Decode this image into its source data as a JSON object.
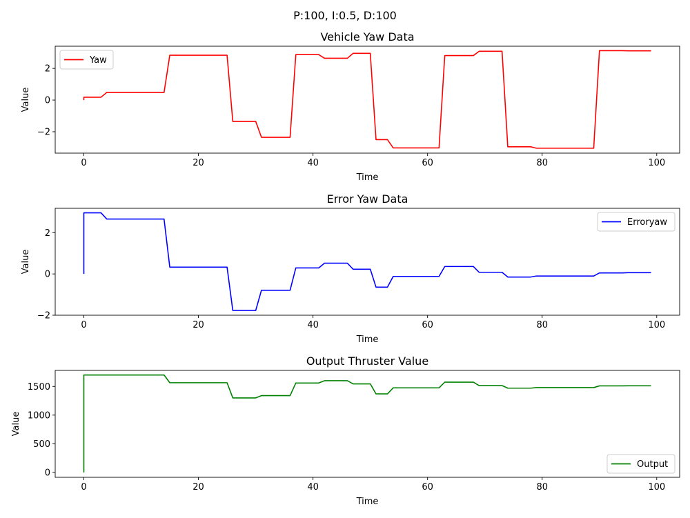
{
  "figure": {
    "suptitle": "P:100, I:0.5, D:100"
  },
  "chart_data": [
    {
      "type": "line",
      "title": "Vehicle Yaw Data",
      "xlabel": "Time",
      "ylabel": "Value",
      "xlim": [
        -5,
        104
      ],
      "ylim": [
        -3.35,
        3.4
      ],
      "xticks": [
        0,
        20,
        40,
        60,
        80,
        100
      ],
      "yticks": [
        -2,
        0,
        2
      ],
      "xtick_labels": [
        "0",
        "20",
        "40",
        "60",
        "80",
        "100"
      ],
      "ytick_labels": [
        "−2",
        "0",
        "2"
      ],
      "legend": {
        "position": "upper-left"
      },
      "series": [
        {
          "name": "Yaw",
          "color": "#ff0000",
          "x": [
            0,
            0,
            1,
            2,
            3,
            4,
            5,
            6,
            7,
            8,
            9,
            10,
            11,
            12,
            13,
            14,
            15,
            16,
            17,
            18,
            19,
            20,
            21,
            22,
            23,
            24,
            25,
            26,
            27,
            28,
            29,
            30,
            31,
            32,
            33,
            34,
            35,
            36,
            37,
            38,
            39,
            40,
            41,
            42,
            43,
            44,
            45,
            46,
            47,
            48,
            49,
            50,
            51,
            52,
            53,
            54,
            55,
            56,
            57,
            58,
            59,
            60,
            61,
            62,
            63,
            64,
            65,
            66,
            67,
            68,
            69,
            70,
            71,
            72,
            73,
            74,
            75,
            76,
            77,
            78,
            79,
            80,
            81,
            82,
            83,
            84,
            85,
            86,
            87,
            88,
            89,
            90,
            91,
            92,
            93,
            94,
            95,
            96,
            97,
            98,
            99
          ],
          "y": [
            0.0,
            0.18,
            0.18,
            0.18,
            0.18,
            0.48,
            0.48,
            0.48,
            0.48,
            0.48,
            0.48,
            0.48,
            0.48,
            0.48,
            0.48,
            0.48,
            2.83,
            2.83,
            2.83,
            2.83,
            2.83,
            2.83,
            2.83,
            2.83,
            2.83,
            2.83,
            2.83,
            -1.35,
            -1.35,
            -1.35,
            -1.35,
            -1.35,
            -2.35,
            -2.35,
            -2.35,
            -2.35,
            -2.35,
            -2.35,
            2.87,
            2.87,
            2.87,
            2.87,
            2.87,
            2.64,
            2.64,
            2.64,
            2.64,
            2.64,
            2.95,
            2.95,
            2.95,
            2.95,
            -2.5,
            -2.5,
            -2.5,
            -3.02,
            -3.02,
            -3.02,
            -3.02,
            -3.02,
            -3.02,
            -3.02,
            -3.02,
            -3.02,
            2.81,
            2.81,
            2.81,
            2.81,
            2.81,
            2.81,
            3.08,
            3.08,
            3.08,
            3.08,
            3.08,
            -2.95,
            -2.95,
            -2.95,
            -2.95,
            -2.95,
            -3.04,
            -3.04,
            -3.04,
            -3.04,
            -3.04,
            -3.04,
            -3.04,
            -3.04,
            -3.04,
            -3.04,
            -3.04,
            3.12,
            3.12,
            3.12,
            3.12,
            3.12,
            3.11,
            3.11,
            3.11,
            3.11,
            3.11
          ]
        }
      ]
    },
    {
      "type": "line",
      "title": "Error Yaw Data",
      "xlabel": "Time",
      "ylabel": "Value",
      "xlim": [
        -5,
        104
      ],
      "ylim": [
        -2.0,
        3.18
      ],
      "xticks": [
        0,
        20,
        40,
        60,
        80,
        100
      ],
      "yticks": [
        -2,
        0,
        2
      ],
      "xtick_labels": [
        "0",
        "20",
        "40",
        "60",
        "80",
        "100"
      ],
      "ytick_labels": [
        "−2",
        "0",
        "2"
      ],
      "legend": {
        "position": "upper-right"
      },
      "series": [
        {
          "name": "Erroryaw",
          "color": "#0000ff",
          "x": [
            0,
            0,
            1,
            2,
            3,
            4,
            5,
            6,
            7,
            8,
            9,
            10,
            11,
            12,
            13,
            14,
            15,
            16,
            17,
            18,
            19,
            20,
            21,
            22,
            23,
            24,
            25,
            26,
            27,
            28,
            29,
            30,
            31,
            32,
            33,
            34,
            35,
            36,
            37,
            38,
            39,
            40,
            41,
            42,
            43,
            44,
            45,
            46,
            47,
            48,
            49,
            50,
            51,
            52,
            53,
            54,
            55,
            56,
            57,
            58,
            59,
            60,
            61,
            62,
            63,
            64,
            65,
            66,
            67,
            68,
            69,
            70,
            71,
            72,
            73,
            74,
            75,
            76,
            77,
            78,
            79,
            80,
            81,
            82,
            83,
            84,
            85,
            86,
            87,
            88,
            89,
            90,
            91,
            92,
            93,
            94,
            95,
            96,
            97,
            98,
            99
          ],
          "y": [
            0.0,
            2.96,
            2.96,
            2.96,
            2.96,
            2.66,
            2.66,
            2.66,
            2.66,
            2.66,
            2.66,
            2.66,
            2.66,
            2.66,
            2.66,
            2.66,
            0.33,
            0.33,
            0.33,
            0.33,
            0.33,
            0.33,
            0.33,
            0.33,
            0.33,
            0.33,
            0.33,
            -1.77,
            -1.77,
            -1.77,
            -1.77,
            -1.77,
            -0.79,
            -0.79,
            -0.79,
            -0.79,
            -0.79,
            -0.79,
            0.29,
            0.29,
            0.29,
            0.29,
            0.29,
            0.52,
            0.52,
            0.52,
            0.52,
            0.52,
            0.23,
            0.23,
            0.23,
            0.23,
            -0.64,
            -0.64,
            -0.64,
            -0.12,
            -0.12,
            -0.12,
            -0.12,
            -0.12,
            -0.12,
            -0.12,
            -0.12,
            -0.12,
            0.36,
            0.36,
            0.36,
            0.36,
            0.36,
            0.36,
            0.08,
            0.08,
            0.08,
            0.08,
            0.08,
            -0.15,
            -0.15,
            -0.15,
            -0.15,
            -0.15,
            -0.1,
            -0.1,
            -0.1,
            -0.1,
            -0.1,
            -0.1,
            -0.1,
            -0.1,
            -0.1,
            -0.1,
            -0.1,
            0.05,
            0.05,
            0.05,
            0.05,
            0.05,
            0.06,
            0.06,
            0.06,
            0.06,
            0.06
          ]
        }
      ]
    },
    {
      "type": "line",
      "title": "Output Thruster Value",
      "xlabel": "Time",
      "ylabel": "Value",
      "xlim": [
        -5,
        104
      ],
      "ylim": [
        -85,
        1780
      ],
      "xticks": [
        0,
        20,
        40,
        60,
        80,
        100
      ],
      "yticks": [
        0,
        500,
        1000,
        1500
      ],
      "xtick_labels": [
        "0",
        "20",
        "40",
        "60",
        "80",
        "100"
      ],
      "ytick_labels": [
        "0",
        "500",
        "1000",
        "1500"
      ],
      "legend": {
        "position": "lower-right"
      },
      "series": [
        {
          "name": "Output",
          "color": "#008000",
          "x": [
            0,
            0,
            1,
            2,
            3,
            4,
            5,
            6,
            7,
            8,
            9,
            10,
            11,
            12,
            13,
            14,
            15,
            16,
            17,
            18,
            19,
            20,
            21,
            22,
            23,
            24,
            25,
            26,
            27,
            28,
            29,
            30,
            31,
            32,
            33,
            34,
            35,
            36,
            37,
            38,
            39,
            40,
            41,
            42,
            43,
            44,
            45,
            46,
            47,
            48,
            49,
            50,
            51,
            52,
            53,
            54,
            55,
            56,
            57,
            58,
            59,
            60,
            61,
            62,
            63,
            64,
            65,
            66,
            67,
            68,
            69,
            70,
            71,
            72,
            73,
            74,
            75,
            76,
            77,
            78,
            79,
            80,
            81,
            82,
            83,
            84,
            85,
            86,
            87,
            88,
            89,
            90,
            91,
            92,
            93,
            94,
            95,
            96,
            97,
            98,
            99
          ],
          "y": [
            0,
            1700,
            1700,
            1700,
            1700,
            1700,
            1700,
            1700,
            1700,
            1700,
            1700,
            1700,
            1700,
            1700,
            1700,
            1700,
            1565,
            1565,
            1565,
            1565,
            1565,
            1565,
            1565,
            1565,
            1565,
            1565,
            1565,
            1300,
            1300,
            1300,
            1300,
            1300,
            1340,
            1340,
            1340,
            1340,
            1340,
            1340,
            1560,
            1560,
            1560,
            1560,
            1560,
            1600,
            1600,
            1600,
            1600,
            1600,
            1545,
            1545,
            1545,
            1545,
            1370,
            1370,
            1370,
            1475,
            1475,
            1475,
            1475,
            1475,
            1475,
            1475,
            1475,
            1475,
            1575,
            1575,
            1575,
            1575,
            1575,
            1575,
            1515,
            1515,
            1515,
            1515,
            1515,
            1470,
            1470,
            1470,
            1470,
            1470,
            1480,
            1480,
            1480,
            1480,
            1480,
            1480,
            1480,
            1480,
            1480,
            1480,
            1480,
            1510,
            1510,
            1510,
            1510,
            1510,
            1512,
            1512,
            1512,
            1512,
            1512
          ]
        }
      ]
    }
  ]
}
